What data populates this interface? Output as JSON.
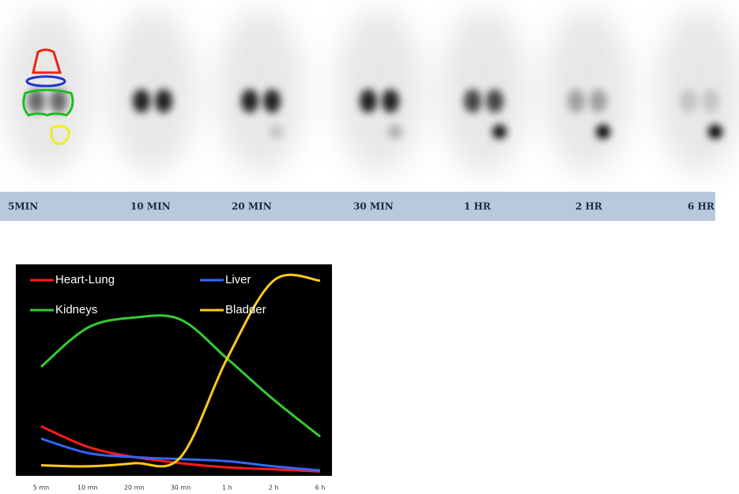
{
  "image_panel": {
    "labels": [
      "5MIN",
      "10 MIN",
      "20 MIN",
      "30 MIN",
      "1 HR",
      "2 HR",
      "6 HR"
    ]
  },
  "chart_data": {
    "type": "line",
    "categories": [
      "5 mn",
      "10 mn",
      "20 mn",
      "30 mn",
      "1 h",
      "2 h",
      "6 h"
    ],
    "ylim": [
      0,
      100
    ],
    "legend": "top",
    "series": [
      {
        "name": "Heart-Lung",
        "color": "#ff1a1a",
        "values": [
          23,
          13,
          8,
          5,
          3,
          2,
          1
        ]
      },
      {
        "name": "Liver",
        "color": "#3366ff",
        "values": [
          17,
          10,
          8,
          7,
          6,
          3.5,
          1.5
        ]
      },
      {
        "name": "Kidneys",
        "color": "#33cc33",
        "values": [
          52,
          71,
          76,
          75,
          56,
          36,
          18
        ]
      },
      {
        "name": "Bladder",
        "color": "#ffcc1a",
        "values": [
          4,
          3.5,
          5,
          8,
          56,
          94,
          94
        ]
      }
    ]
  }
}
